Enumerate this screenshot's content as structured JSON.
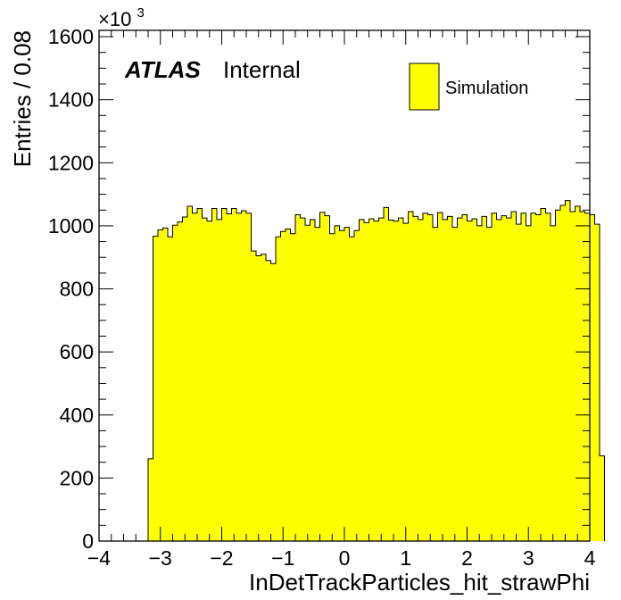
{
  "chart_data": {
    "type": "bar",
    "ylabel": "Entries / 0.08",
    "xlabel": "InDetTrackParticles_hit_strawPhi",
    "y_multiplier": "×10",
    "y_multiplier_exponent": "3",
    "atlas_label": "ATLAS",
    "atlas_status": "Internal",
    "legend": {
      "position": "top-right",
      "entries": [
        {
          "name": "Simulation",
          "color": "#ffff00"
        }
      ]
    },
    "xlim": [
      -4,
      4
    ],
    "ylim": [
      0,
      1620
    ],
    "xticks": [
      "−4",
      "−3",
      "−2",
      "−1",
      "0",
      "1",
      "2",
      "3",
      "4"
    ],
    "yticks": [
      "0",
      "200",
      "400",
      "600",
      "800",
      "1000",
      "1200",
      "1400",
      "1600"
    ],
    "bin_width": 0.08,
    "x_start": -3.2,
    "series": [
      {
        "name": "Simulation",
        "color": "#ffff00",
        "values": [
          261,
          967,
          987,
          993,
          965,
          1002,
          1012,
          1028,
          1062,
          1040,
          1055,
          1025,
          1015,
          1055,
          1020,
          1055,
          1038,
          1055,
          1040,
          1048,
          1040,
          920,
          905,
          910,
          890,
          880,
          965,
          982,
          990,
          975,
          1035,
          1025,
          1002,
          1020,
          995,
          1043,
          1032,
          975,
          1000,
          985,
          995,
          965,
          985,
          1020,
          1010,
          1022,
          1015,
          1025,
          1058,
          1018,
          1015,
          1025,
          1008,
          1045,
          1030,
          1020,
          1040,
          1035,
          995,
          1042,
          1020,
          1030,
          995,
          1025,
          1035,
          1015,
          1022,
          1000,
          1030,
          995,
          1040,
          1020,
          1032,
          1025,
          1045,
          1005,
          1040,
          1000,
          1040,
          1035,
          1055,
          1040,
          1000,
          1050,
          1065,
          1080,
          1045,
          1062,
          1045,
          1040,
          1035,
          1005,
          270
        ]
      }
    ]
  }
}
